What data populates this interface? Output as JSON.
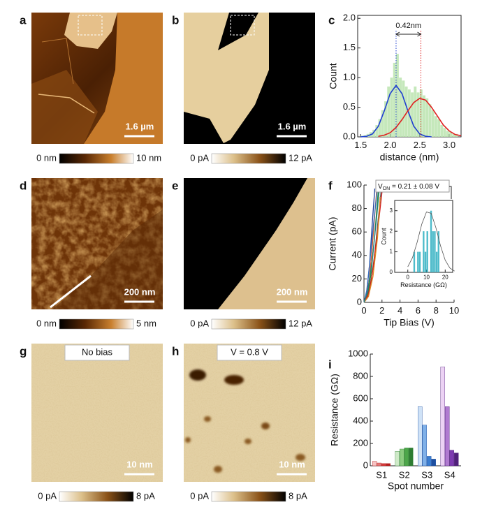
{
  "panels": [
    {
      "label": "a",
      "scale_bar": "1.6 µm",
      "colorbar": [
        "0 nm",
        "10 nm"
      ]
    },
    {
      "label": "b",
      "scale_bar": "1.6 µm",
      "colorbar": [
        "0 pA",
        "12 pA"
      ]
    },
    {
      "label": "d",
      "scale_bar": "200 nm",
      "colorbar": [
        "0 nm",
        "5 nm"
      ]
    },
    {
      "label": "e",
      "scale_bar": "200 nm",
      "colorbar": [
        "0 pA",
        "12 pA"
      ]
    },
    {
      "label": "g",
      "scale_bar": "10 nm",
      "colorbar": [
        "0 pA",
        "8 pA"
      ],
      "tag": "No bias"
    },
    {
      "label": "h",
      "scale_bar": "10 nm",
      "colorbar": [
        "0 pA",
        "8 pA"
      ],
      "tag": "V = 0.8 V"
    }
  ],
  "chart_data": [
    {
      "type": "histogram",
      "label": "c",
      "xlabel": "distance (nm)",
      "ylabel": "Count",
      "bins": [
        1.5,
        1.55,
        1.6,
        1.65,
        1.7,
        1.75,
        1.8,
        1.85,
        1.9,
        1.95,
        2.0,
        2.05,
        2.1,
        2.15,
        2.2,
        2.25,
        2.3,
        2.35,
        2.4,
        2.45,
        2.5,
        2.55,
        2.6,
        2.65,
        2.7,
        2.75,
        2.8,
        2.85,
        2.9,
        2.95,
        3.0,
        3.05,
        3.1,
        3.15
      ],
      "counts": [
        0.02,
        0.03,
        0.05,
        0.08,
        0.12,
        0.2,
        0.3,
        0.45,
        0.6,
        0.85,
        1.0,
        1.25,
        1.4,
        1.0,
        0.95,
        0.85,
        0.8,
        0.75,
        0.85,
        0.75,
        0.8,
        0.7,
        0.65,
        0.55,
        0.45,
        0.35,
        0.3,
        0.2,
        0.15,
        0.1,
        0.08,
        0.05,
        0.05
      ],
      "color": "#bfe5b4",
      "xlim": [
        1.45,
        3.2
      ],
      "xticks": [
        1.5,
        {
          "value": 2,
          "label": "2.0"
        },
        2.5,
        {
          "value": 3,
          "label": "3.0"
        }
      ],
      "ylim": [
        0,
        2.05
      ],
      "yticks": [
        {
          "value": 0,
          "label": "0.0"
        },
        0.5,
        {
          "value": 1,
          "label": "1.0"
        },
        1.5,
        {
          "value": 2,
          "label": "2.0"
        }
      ],
      "series": [
        {
          "color": "#1f3fd0",
          "x": [
            1.5,
            1.6,
            1.7,
            1.8,
            1.9,
            2.0,
            2.1,
            2.2,
            2.3,
            2.4,
            2.5,
            2.6,
            2.7
          ],
          "values": [
            0,
            0.01,
            0.05,
            0.18,
            0.44,
            0.73,
            0.87,
            0.73,
            0.44,
            0.18,
            0.05,
            0.01,
            0
          ]
        },
        {
          "color": "#e02020",
          "x": [
            1.8,
            1.9,
            2.0,
            2.1,
            2.2,
            2.3,
            2.4,
            2.5,
            2.6,
            2.7,
            2.8,
            2.9,
            3.0,
            3.1,
            3.2
          ],
          "values": [
            0.01,
            0.03,
            0.07,
            0.16,
            0.29,
            0.44,
            0.58,
            0.65,
            0.62,
            0.5,
            0.35,
            0.2,
            0.1,
            0.04,
            0.02
          ]
        }
      ],
      "annotation": {
        "text": "0.42nm",
        "x": [
          2.1,
          2.52
        ]
      }
    },
    {
      "type": "line",
      "label": "f",
      "xlabel": "Tip Bias (V)",
      "ylabel": "Current (pA)",
      "xlim": [
        0,
        10
      ],
      "xticks": [
        0,
        2,
        4,
        6,
        8,
        10
      ],
      "ylim": [
        0,
        100
      ],
      "yticks": [
        0,
        20,
        40,
        60,
        80,
        100
      ],
      "series": [
        {
          "color": "#1f3f99",
          "x": [
            0,
            0.3,
            0.6,
            0.9,
            1.2
          ],
          "values": [
            0,
            8,
            30,
            65,
            97
          ]
        },
        {
          "color": "#e05a2a",
          "x": [
            0,
            0.3,
            0.6,
            0.9,
            1.2,
            1.4
          ],
          "values": [
            0,
            5,
            20,
            45,
            75,
            95
          ]
        },
        {
          "color": "#2a8a3a",
          "x": [
            0,
            0.4,
            0.8,
            1.2,
            1.6
          ],
          "values": [
            0,
            6,
            25,
            58,
            96
          ]
        },
        {
          "color": "#555555",
          "x": [
            0,
            0.4,
            0.8,
            1.2,
            1.6,
            1.9
          ],
          "values": [
            0,
            4,
            18,
            42,
            72,
            95
          ]
        },
        {
          "color": "#d42020",
          "x": [
            0,
            0.5,
            1.0,
            1.5,
            2.0
          ],
          "values": [
            0,
            7,
            28,
            60,
            94
          ]
        },
        {
          "color": "#3a70c0",
          "x": [
            0,
            0.3,
            0.7,
            1.1,
            1.5
          ],
          "values": [
            0,
            10,
            38,
            70,
            98
          ]
        },
        {
          "color": "#e08a20",
          "x": [
            0,
            0.5,
            1.0,
            1.5,
            1.8
          ],
          "values": [
            0,
            5,
            22,
            55,
            90
          ]
        },
        {
          "color": "#208080",
          "x": [
            0,
            0.4,
            0.9,
            1.4,
            1.7
          ],
          "values": [
            0,
            9,
            35,
            72,
            96
          ]
        }
      ],
      "annotation": {
        "main": "V",
        "sub": "ON",
        "rest": " = 0.21 ± 0.08 V"
      }
    },
    {
      "type": "histogram",
      "xlabel": "Resistance (GΩ)",
      "ylabel": "Count",
      "bins": [
        3,
        4,
        5,
        6,
        7,
        8,
        9,
        10,
        11,
        12,
        13,
        14,
        15,
        16,
        17
      ],
      "counts": [
        1,
        0,
        1,
        1,
        0,
        2,
        1,
        2,
        0,
        3,
        2,
        2,
        1,
        2
      ],
      "color": "#3ab4c4",
      "xlim": [
        -7,
        24
      ],
      "xticks": [
        0,
        10,
        20
      ],
      "ylim": [
        0,
        3.5
      ],
      "yticks": [
        0,
        1,
        2,
        3
      ],
      "series": [
        {
          "color": "#555555",
          "x": [
            0,
            2.5,
            5,
            7.5,
            10,
            12.5,
            15,
            17.5,
            20,
            22.5,
            25
          ],
          "values": [
            0.27,
            0.71,
            1.46,
            2.35,
            2.94,
            2.87,
            2.18,
            1.29,
            0.59,
            0.21,
            0.06
          ]
        }
      ]
    },
    {
      "type": "bar",
      "label": "i",
      "xlabel": "Spot number",
      "ylabel": "Resistance (GΩ)",
      "categories": [
        "S1",
        "S2",
        "S3",
        "S4"
      ],
      "ylim": [
        0,
        1000
      ],
      "yticks": [
        0,
        200,
        400,
        600,
        800,
        1000
      ],
      "series": [
        {
          "colors": [
            "#f6c4c4",
            "#cfeac8",
            "#cfe2f7",
            "#ecd2f4"
          ],
          "values": [
            40,
            130,
            530,
            885
          ]
        },
        {
          "colors": [
            "#e37a7a",
            "#8ccc80",
            "#7fb0e8",
            "#b07ad0"
          ],
          "values": [
            25,
            150,
            365,
            530
          ]
        },
        {
          "colors": [
            "#d43a3a",
            "#4da64a",
            "#3a7dd0",
            "#7d3ab0"
          ],
          "values": [
            20,
            160,
            85,
            140
          ]
        },
        {
          "colors": [
            "#b51f1f",
            "#2e7d32",
            "#1d4fa0",
            "#50207a"
          ],
          "values": [
            20,
            160,
            60,
            115
          ]
        }
      ]
    }
  ]
}
